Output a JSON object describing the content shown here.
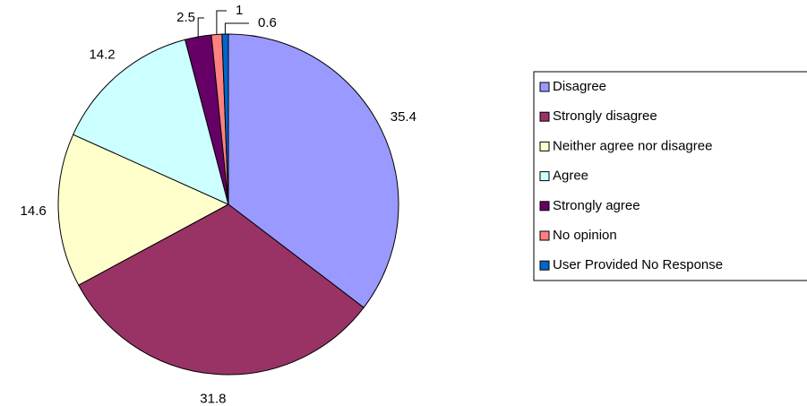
{
  "chart_data": {
    "type": "pie",
    "categories": [
      "Disagree",
      "Strongly disagree",
      "Neither agree nor disagree",
      "Agree",
      "Strongly agree",
      "No opinion",
      "User Provided No Response"
    ],
    "values": [
      35.4,
      31.8,
      14.6,
      14.2,
      2.5,
      1,
      0.6
    ],
    "colors": [
      "#9999ff",
      "#993366",
      "#ffffcc",
      "#ccffff",
      "#660066",
      "#ff8080",
      "#0066cc"
    ],
    "legend": "right"
  }
}
